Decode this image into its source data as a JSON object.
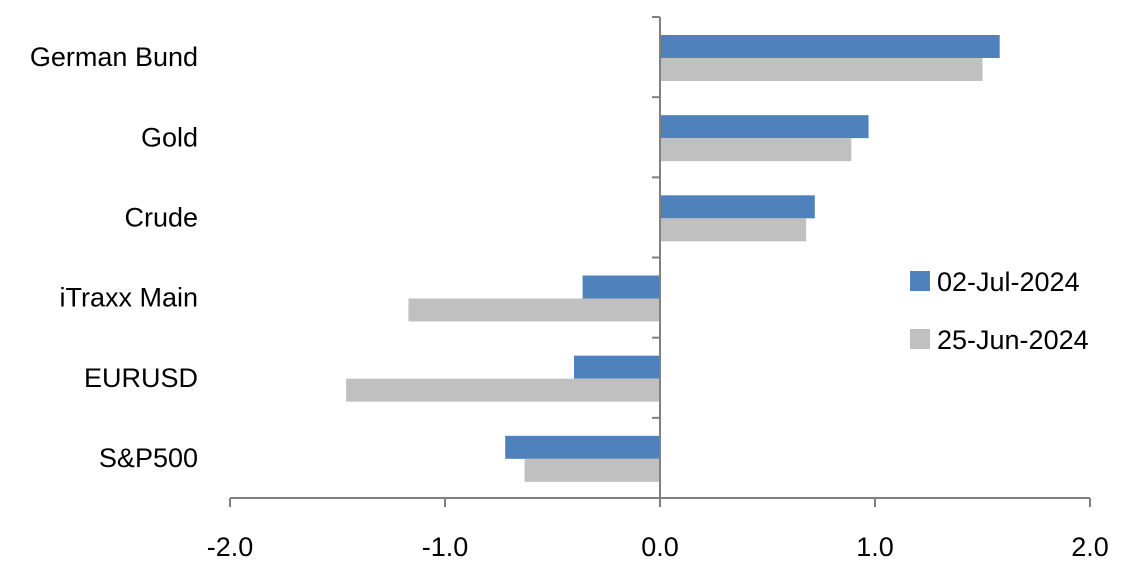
{
  "chart_data": {
    "type": "bar",
    "orientation": "horizontal",
    "categories": [
      "German Bund",
      "Gold",
      "Crude",
      "iTraxx Main",
      "EURUSD",
      "S&P500"
    ],
    "series": [
      {
        "name": "02-Jul-2024",
        "color": "#4f81bd",
        "values": [
          1.58,
          0.97,
          0.72,
          -0.36,
          -0.4,
          -0.72
        ]
      },
      {
        "name": "25-Jun-2024",
        "color": "#c0c0c0",
        "values": [
          1.5,
          0.89,
          0.68,
          -1.17,
          -1.46,
          -0.63
        ]
      }
    ],
    "xlim": [
      -2.0,
      2.0
    ],
    "xticks": [
      "-2.0",
      "-1.0",
      "0.0",
      "1.0",
      "2.0"
    ],
    "title": "",
    "xlabel": "",
    "ylabel": "",
    "grid": false,
    "legend_position": "right"
  }
}
